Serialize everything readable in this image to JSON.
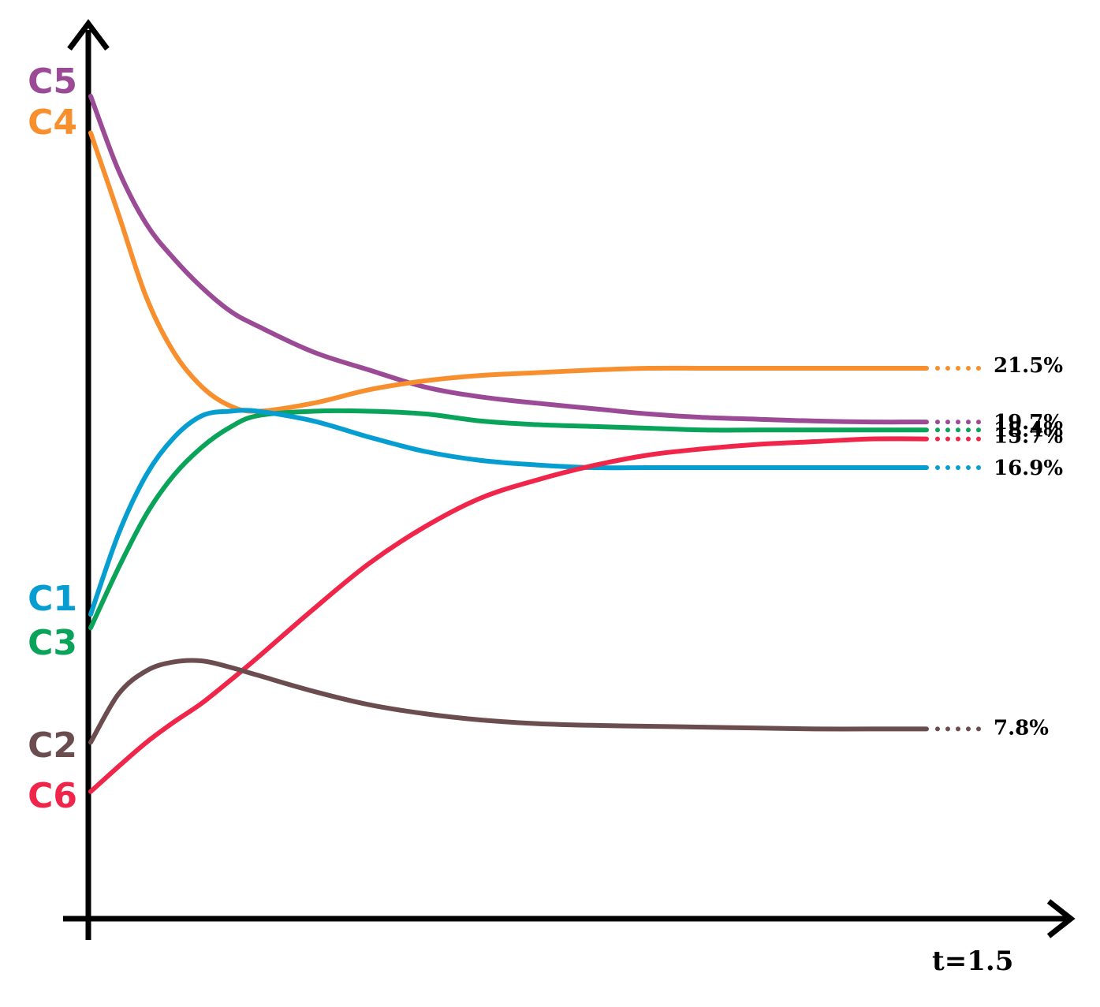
{
  "chart_data": {
    "type": "line",
    "title": "",
    "xlabel": "t=1.5",
    "ylabel": "",
    "xlim": [
      0,
      1.5
    ],
    "ylim": [
      0,
      100
    ],
    "grid": false,
    "x": [
      0,
      0.05,
      0.1,
      0.15,
      0.2,
      0.25,
      0.3,
      0.4,
      0.5,
      0.6,
      0.7,
      0.8,
      0.9,
      1.0,
      1.1,
      1.2,
      1.3,
      1.4,
      1.5
    ],
    "series": [
      {
        "name": "C5",
        "start_label": "C5",
        "end_label": "19.7%",
        "color": "#9b4a96",
        "values": [
          91.9,
          83.6,
          77.6,
          73.7,
          70.5,
          67.9,
          66.2,
          63.3,
          61.3,
          59.4,
          58.3,
          57.6,
          57.0,
          56.4,
          56.0,
          55.8,
          55.6,
          55.5,
          55.5
        ]
      },
      {
        "name": "C4",
        "start_label": "C4",
        "end_label": "21.5%",
        "color": "#f78f2e",
        "values": [
          87.8,
          78.7,
          69.4,
          63.2,
          59.4,
          57.3,
          56.7,
          57.6,
          59.1,
          60.1,
          60.7,
          61.0,
          61.3,
          61.5,
          61.5,
          61.5,
          61.5,
          61.5,
          61.5
        ]
      },
      {
        "name": "C3",
        "start_label": "C3",
        "end_label": "18.4%",
        "color": "#0aa35a",
        "values": [
          32.5,
          39.2,
          45.2,
          49.6,
          52.7,
          54.9,
          56.2,
          56.7,
          56.7,
          56.4,
          55.6,
          55.2,
          55.0,
          54.8,
          54.6,
          54.6,
          54.6,
          54.6,
          54.6
        ]
      },
      {
        "name": "C1",
        "start_label": "C1",
        "end_label": "16.9%",
        "color": "#069ed1",
        "values": [
          34.0,
          43.0,
          49.6,
          53.8,
          56.2,
          56.7,
          56.7,
          55.6,
          53.8,
          52.2,
          51.2,
          50.7,
          50.4,
          50.4,
          50.4,
          50.4,
          50.4,
          50.4,
          50.4
        ]
      },
      {
        "name": "C6",
        "start_label": "C6",
        "end_label": "15.7%",
        "color": "#f0254a",
        "values": [
          14.2,
          17.0,
          19.7,
          22.0,
          24.1,
          26.6,
          29.2,
          34.6,
          39.7,
          43.8,
          47.0,
          49.0,
          50.6,
          51.8,
          52.5,
          53.0,
          53.3,
          53.6,
          53.6
        ]
      },
      {
        "name": "C2",
        "start_label": "C2",
        "end_label": "7.8%",
        "color": "#6b4d4f",
        "values": [
          19.7,
          25.1,
          27.7,
          28.7,
          28.8,
          28.1,
          27.2,
          25.4,
          23.9,
          22.9,
          22.2,
          21.8,
          21.6,
          21.5,
          21.4,
          21.3,
          21.2,
          21.2,
          21.2
        ]
      }
    ]
  }
}
